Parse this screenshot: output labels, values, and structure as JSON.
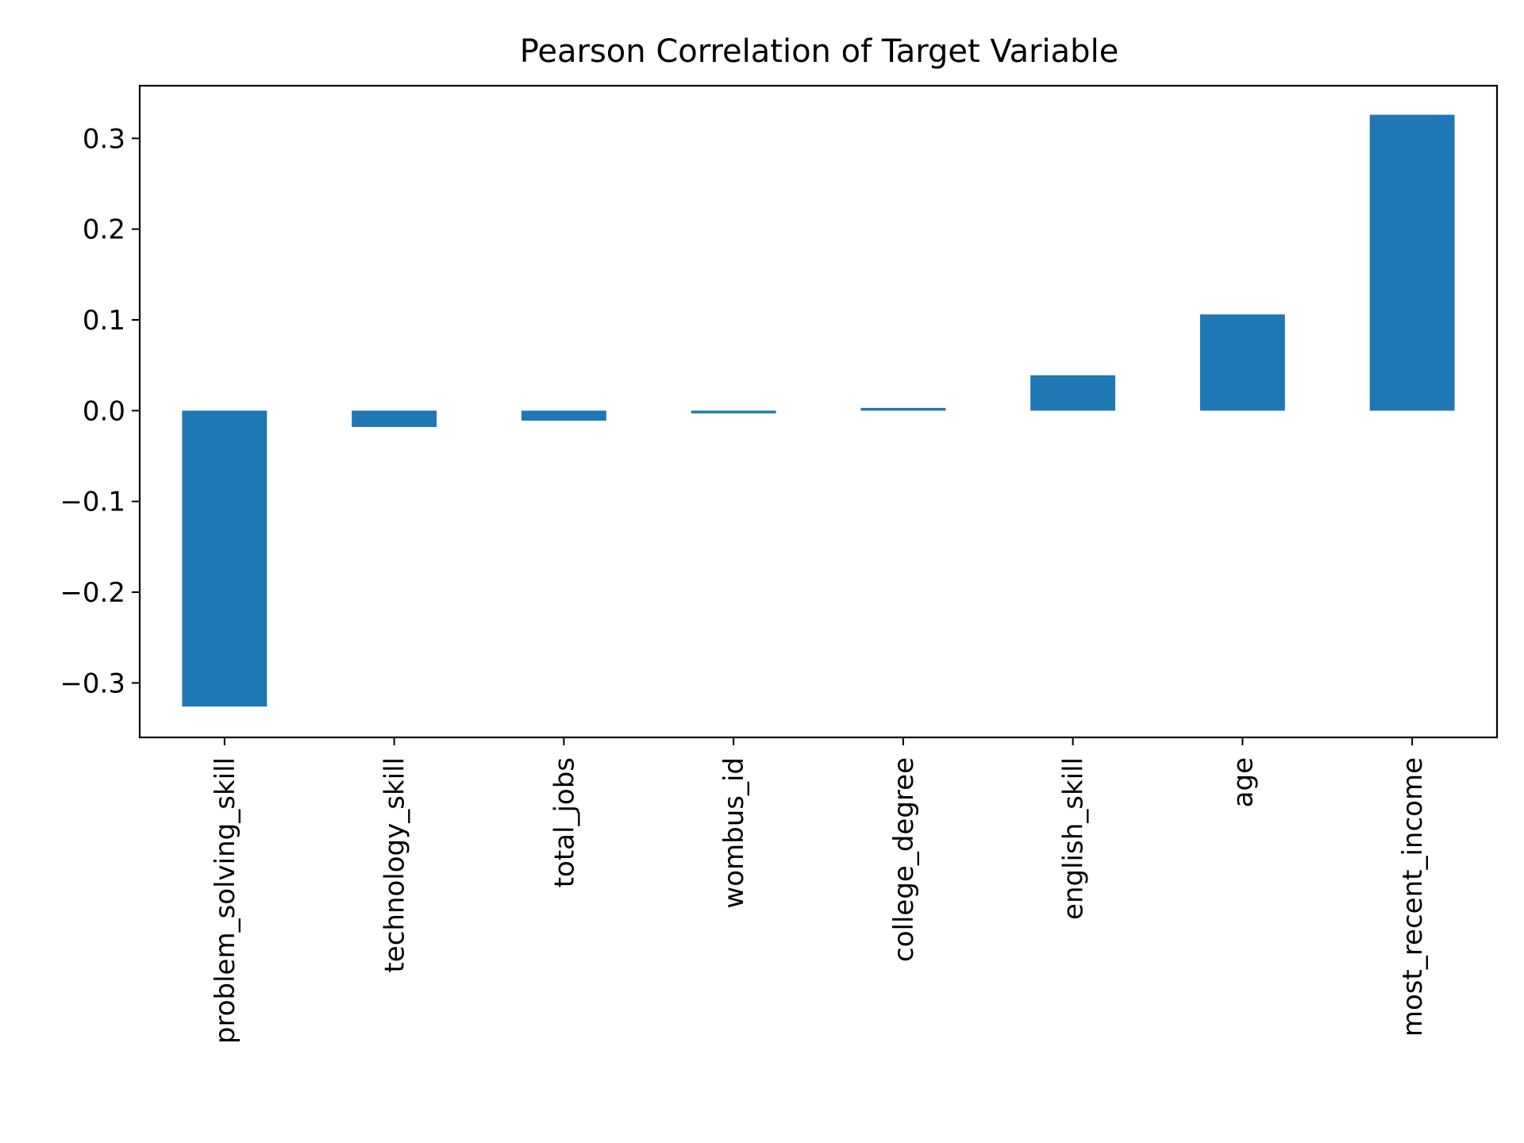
{
  "chart_data": {
    "type": "bar",
    "title": "Pearson Correlation of Target Variable",
    "xlabel": "",
    "ylabel": "",
    "categories": [
      "problem_solving_skill",
      "technology_skill",
      "total_jobs",
      "wombus_id",
      "college_degree",
      "english_skill",
      "age",
      "most_recent_income"
    ],
    "values": [
      -0.326,
      -0.018,
      -0.011,
      -0.003,
      0.003,
      0.039,
      0.106,
      0.326
    ],
    "ylim": [
      -0.36,
      0.358
    ],
    "yticks": [
      -0.3,
      -0.2,
      -0.1,
      0.0,
      0.1,
      0.2,
      0.3
    ],
    "ytick_labels": [
      "−0.3",
      "−0.2",
      "−0.1",
      "0.0",
      "0.1",
      "0.2",
      "0.3"
    ],
    "grid": false,
    "legend": "none",
    "bar_color": "#1f77b4"
  }
}
